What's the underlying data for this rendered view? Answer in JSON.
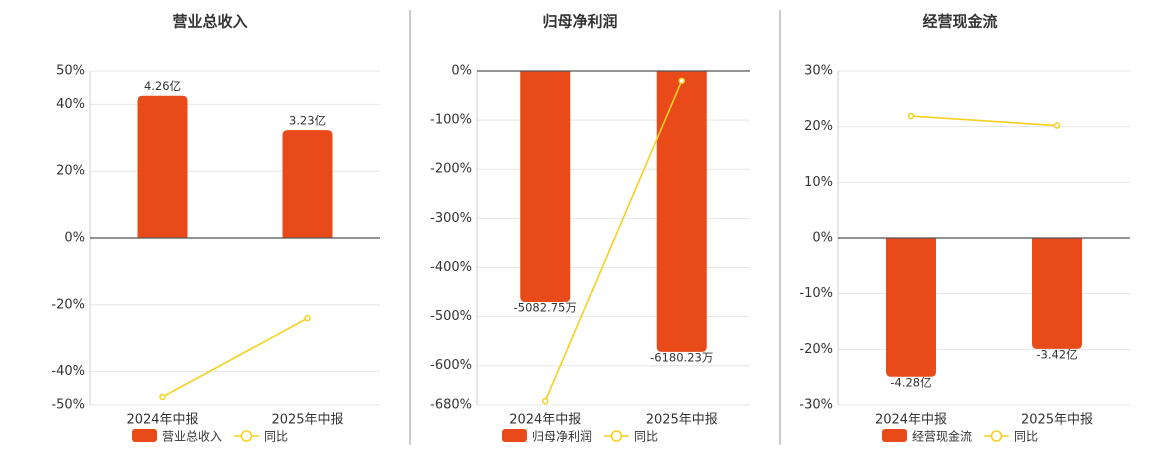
{
  "chart_data": [
    {
      "type": "combo",
      "title": "营业总收入",
      "categories": [
        "2024年中报",
        "2025年中报"
      ],
      "ylim": [
        -50,
        50
      ],
      "yticks": [
        {
          "value": 50,
          "label": "50%"
        },
        {
          "value": 40,
          "label": "40%"
        },
        {
          "value": 20,
          "label": "20%"
        },
        {
          "value": 0,
          "label": "0%"
        },
        {
          "value": -20,
          "label": "-20%"
        },
        {
          "value": -40,
          "label": "-40%"
        },
        {
          "value": -50,
          "label": "-50%"
        }
      ],
      "y2lim": [
        -5,
        5
      ],
      "grid": true,
      "series": [
        {
          "name": "营业总收入",
          "type": "bar",
          "axis": "y2",
          "color": "#e84a1a",
          "values": [
            4.26,
            3.23
          ],
          "value_labels": [
            "4.26亿",
            "3.23亿"
          ]
        },
        {
          "name": "同比",
          "type": "line",
          "color": "#f5d01e",
          "values": [
            -47.6,
            -24
          ]
        }
      ]
    },
    {
      "type": "combo",
      "title": "归母净利润",
      "categories": [
        "2024年中报",
        "2025年中报"
      ],
      "ylim": [
        -680,
        0
      ],
      "yticks": [
        {
          "value": 0,
          "label": "0%"
        },
        {
          "value": -100,
          "label": "-100%"
        },
        {
          "value": -200,
          "label": "-200%"
        },
        {
          "value": -300,
          "label": "-300%"
        },
        {
          "value": -400,
          "label": "-400%"
        },
        {
          "value": -500,
          "label": "-500%"
        },
        {
          "value": -600,
          "label": "-600%"
        },
        {
          "value": -680,
          "label": "-680%"
        }
      ],
      "y2lim": [
        -7350,
        0
      ],
      "grid": true,
      "series": [
        {
          "name": "归母净利润",
          "type": "bar",
          "axis": "y2",
          "color": "#e84a1a",
          "values": [
            -5082.75,
            -6180.23
          ],
          "value_labels": [
            "-5082.75万",
            "-6180.23万"
          ]
        },
        {
          "name": "同比",
          "type": "line",
          "color": "#f5d01e",
          "values": [
            -672,
            -20
          ]
        }
      ]
    },
    {
      "type": "combo",
      "title": "经营现金流",
      "categories": [
        "2024年中报",
        "2025年中报"
      ],
      "ylim": [
        -30,
        30
      ],
      "yticks": [
        {
          "value": 30,
          "label": "30%"
        },
        {
          "value": 20,
          "label": "20%"
        },
        {
          "value": 10,
          "label": "10%"
        },
        {
          "value": 0,
          "label": "0%"
        },
        {
          "value": -10,
          "label": "-10%"
        },
        {
          "value": -20,
          "label": "-20%"
        },
        {
          "value": -30,
          "label": "-30%"
        }
      ],
      "y2lim": [
        -5.15,
        5.15
      ],
      "grid": true,
      "series": [
        {
          "name": "经营现金流",
          "type": "bar",
          "axis": "y2",
          "color": "#e84a1a",
          "values": [
            -4.28,
            -3.42
          ],
          "value_labels": [
            "-4.28亿",
            "-3.42亿"
          ]
        },
        {
          "name": "同比",
          "type": "line",
          "color": "#f5d01e",
          "values": [
            21.9,
            20.2
          ]
        }
      ]
    }
  ]
}
